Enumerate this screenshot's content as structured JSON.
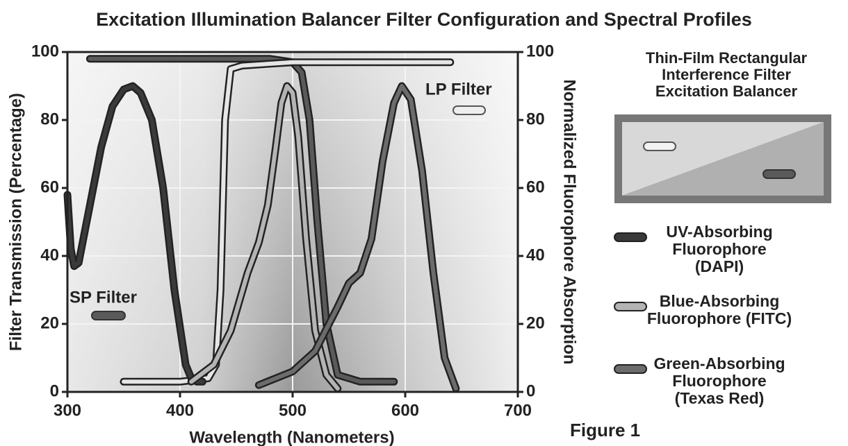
{
  "chart_data": {
    "type": "line",
    "title": "Excitation Illumination Balancer Filter Configuration and Spectral Profiles",
    "xlabel": "Wavelength (Nanometers)",
    "ylabel": "Filter Transmission (Percentage)",
    "y2label": "Normalized Fluorophore Absorption",
    "xlim": [
      300,
      700
    ],
    "xticks": [
      300,
      400,
      500,
      600,
      700
    ],
    "ylim": [
      0,
      100
    ],
    "yticks": [
      0,
      20,
      40,
      60,
      80,
      100
    ],
    "y2lim": [
      0,
      100
    ],
    "y2ticks": [
      0,
      20,
      40,
      60,
      80,
      100
    ],
    "grid": true,
    "annotations": [
      "SP Filter",
      "LP Filter",
      "Thin-Film Rectangular Interference Filter Excitation Balancer",
      "Figure 1"
    ],
    "filters": [
      {
        "name": "SP Filter",
        "color": "#5a5a5a",
        "x": [
          320,
          400,
          480,
          500,
          508,
          515,
          522,
          530,
          540,
          560,
          590
        ],
        "values": [
          98,
          98,
          98,
          97,
          94,
          80,
          50,
          20,
          5,
          3,
          3
        ]
      },
      {
        "name": "LP Filter",
        "color": "#e6e6e6",
        "x": [
          350,
          400,
          425,
          432,
          436,
          440,
          445,
          455,
          500,
          600,
          640
        ],
        "values": [
          3,
          3,
          4,
          8,
          30,
          80,
          95,
          96,
          97,
          97,
          97
        ]
      }
    ],
    "series": [
      {
        "name": "UV-Absorbing Fluorophore (DAPI)",
        "color": "#3a3a3a",
        "axis": "y2",
        "x": [
          300,
          303,
          306,
          310,
          320,
          330,
          340,
          350,
          358,
          365,
          375,
          385,
          395,
          405,
          410,
          415,
          420
        ],
        "values": [
          58,
          42,
          37,
          38,
          55,
          72,
          84,
          89,
          90,
          88,
          80,
          60,
          30,
          8,
          4,
          3,
          3
        ]
      },
      {
        "name": "Blue-Absorbing Fluorophore (FITC)",
        "color": "#b4b4b4",
        "axis": "y2",
        "x": [
          410,
          430,
          445,
          460,
          470,
          478,
          485,
          490,
          495,
          500,
          505,
          512,
          520,
          530,
          540
        ],
        "values": [
          3,
          8,
          18,
          35,
          44,
          55,
          72,
          85,
          90,
          88,
          75,
          45,
          18,
          5,
          1
        ]
      },
      {
        "name": "Green-Absorbing Fluorophore (Texas Red)",
        "color": "#6c6c6c",
        "axis": "y2",
        "x": [
          470,
          500,
          520,
          540,
          550,
          560,
          570,
          580,
          590,
          597,
          605,
          615,
          625,
          635,
          645
        ],
        "values": [
          2,
          6,
          12,
          25,
          32,
          35,
          45,
          68,
          85,
          90,
          86,
          65,
          35,
          10,
          1
        ]
      }
    ]
  }
}
